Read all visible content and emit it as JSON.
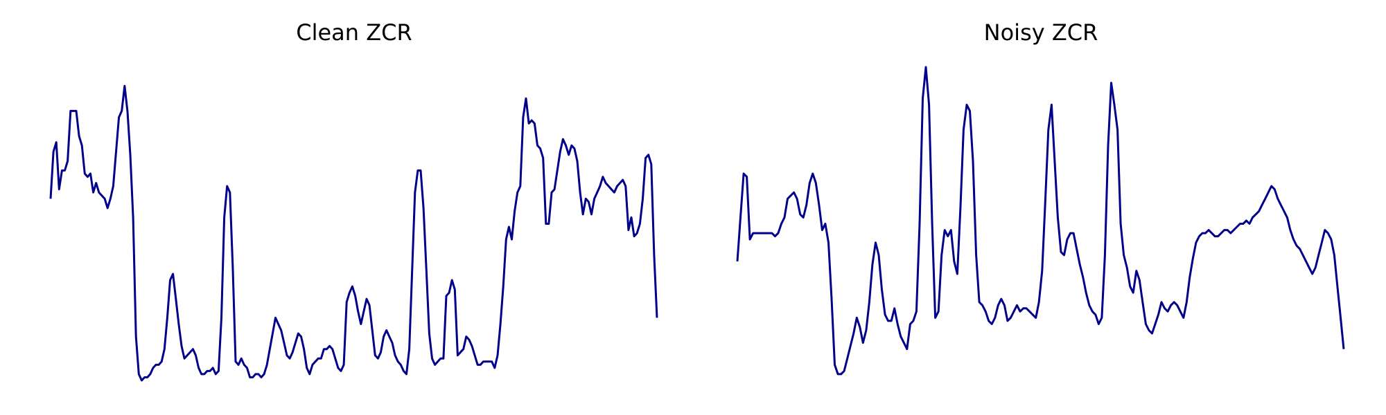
{
  "line_color": "#00008b",
  "chart_data": [
    {
      "type": "line",
      "title": "Clean ZCR",
      "axes_visible": false,
      "grid": false,
      "legend": "none",
      "ylim": [
        0,
        1
      ],
      "series": [
        {
          "values": [
            0.58,
            0.73,
            0.76,
            0.61,
            0.67,
            0.67,
            0.7,
            0.86,
            0.86,
            0.86,
            0.78,
            0.75,
            0.66,
            0.65,
            0.66,
            0.6,
            0.63,
            0.6,
            0.59,
            0.58,
            0.55,
            0.58,
            0.62,
            0.73,
            0.84,
            0.86,
            0.94,
            0.86,
            0.72,
            0.52,
            0.14,
            0.02,
            0.0,
            0.01,
            0.01,
            0.02,
            0.04,
            0.05,
            0.05,
            0.06,
            0.1,
            0.2,
            0.32,
            0.34,
            0.26,
            0.18,
            0.11,
            0.07,
            0.08,
            0.09,
            0.1,
            0.08,
            0.04,
            0.02,
            0.02,
            0.03,
            0.03,
            0.04,
            0.02,
            0.03,
            0.2,
            0.52,
            0.62,
            0.6,
            0.36,
            0.06,
            0.05,
            0.07,
            0.05,
            0.04,
            0.01,
            0.01,
            0.02,
            0.02,
            0.01,
            0.02,
            0.05,
            0.1,
            0.15,
            0.2,
            0.18,
            0.16,
            0.12,
            0.08,
            0.07,
            0.09,
            0.12,
            0.15,
            0.14,
            0.1,
            0.04,
            0.02,
            0.05,
            0.06,
            0.07,
            0.07,
            0.1,
            0.1,
            0.11,
            0.1,
            0.07,
            0.04,
            0.03,
            0.05,
            0.25,
            0.28,
            0.3,
            0.27,
            0.22,
            0.18,
            0.22,
            0.26,
            0.24,
            0.16,
            0.08,
            0.07,
            0.09,
            0.14,
            0.16,
            0.14,
            0.12,
            0.08,
            0.06,
            0.05,
            0.03,
            0.02,
            0.1,
            0.35,
            0.6,
            0.67,
            0.67,
            0.55,
            0.35,
            0.15,
            0.07,
            0.05,
            0.06,
            0.07,
            0.07,
            0.27,
            0.28,
            0.32,
            0.29,
            0.08,
            0.09,
            0.1,
            0.14,
            0.13,
            0.11,
            0.08,
            0.05,
            0.05,
            0.06,
            0.06,
            0.06,
            0.06,
            0.04,
            0.08,
            0.18,
            0.3,
            0.45,
            0.49,
            0.45,
            0.54,
            0.6,
            0.62,
            0.84,
            0.9,
            0.82,
            0.83,
            0.82,
            0.75,
            0.74,
            0.71,
            0.5,
            0.5,
            0.6,
            0.61,
            0.67,
            0.73,
            0.77,
            0.75,
            0.72,
            0.75,
            0.74,
            0.7,
            0.6,
            0.53,
            0.58,
            0.57,
            0.53,
            0.58,
            0.6,
            0.62,
            0.65,
            0.63,
            0.62,
            0.61,
            0.6,
            0.62,
            0.63,
            0.64,
            0.62,
            0.48,
            0.52,
            0.46,
            0.47,
            0.5,
            0.58,
            0.71,
            0.72,
            0.69,
            0.4,
            0.2
          ]
        }
      ]
    },
    {
      "type": "line",
      "title": "Noisy ZCR",
      "axes_visible": false,
      "grid": false,
      "legend": "none",
      "ylim": [
        0,
        1
      ],
      "series": [
        {
          "values": [
            0.38,
            0.52,
            0.66,
            0.65,
            0.45,
            0.47,
            0.47,
            0.47,
            0.47,
            0.47,
            0.47,
            0.47,
            0.46,
            0.47,
            0.5,
            0.52,
            0.58,
            0.59,
            0.6,
            0.58,
            0.53,
            0.52,
            0.56,
            0.63,
            0.66,
            0.63,
            0.56,
            0.48,
            0.5,
            0.44,
            0.26,
            0.05,
            0.02,
            0.02,
            0.03,
            0.07,
            0.11,
            0.15,
            0.2,
            0.17,
            0.12,
            0.16,
            0.25,
            0.37,
            0.44,
            0.4,
            0.29,
            0.21,
            0.19,
            0.19,
            0.23,
            0.18,
            0.14,
            0.12,
            0.1,
            0.18,
            0.19,
            0.22,
            0.5,
            0.9,
            1.0,
            0.88,
            0.5,
            0.2,
            0.22,
            0.4,
            0.48,
            0.46,
            0.48,
            0.38,
            0.34,
            0.55,
            0.8,
            0.88,
            0.86,
            0.7,
            0.4,
            0.25,
            0.24,
            0.22,
            0.19,
            0.18,
            0.2,
            0.24,
            0.26,
            0.24,
            0.19,
            0.2,
            0.22,
            0.24,
            0.22,
            0.23,
            0.23,
            0.22,
            0.21,
            0.2,
            0.25,
            0.35,
            0.57,
            0.8,
            0.88,
            0.7,
            0.52,
            0.41,
            0.4,
            0.45,
            0.47,
            0.47,
            0.42,
            0.37,
            0.33,
            0.28,
            0.24,
            0.22,
            0.21,
            0.18,
            0.2,
            0.4,
            0.75,
            0.95,
            0.88,
            0.8,
            0.5,
            0.4,
            0.36,
            0.3,
            0.28,
            0.35,
            0.32,
            0.25,
            0.18,
            0.16,
            0.15,
            0.18,
            0.21,
            0.25,
            0.23,
            0.22,
            0.24,
            0.25,
            0.24,
            0.22,
            0.2,
            0.25,
            0.33,
            0.39,
            0.44,
            0.46,
            0.47,
            0.47,
            0.48,
            0.47,
            0.46,
            0.46,
            0.47,
            0.48,
            0.48,
            0.47,
            0.48,
            0.49,
            0.5,
            0.5,
            0.51,
            0.5,
            0.52,
            0.53,
            0.54,
            0.56,
            0.58,
            0.6,
            0.62,
            0.61,
            0.58,
            0.56,
            0.54,
            0.52,
            0.48,
            0.45,
            0.43,
            0.42,
            0.4,
            0.38,
            0.36,
            0.34,
            0.36,
            0.4,
            0.44,
            0.48,
            0.47,
            0.45,
            0.4,
            0.3,
            0.2,
            0.1
          ]
        }
      ]
    }
  ]
}
